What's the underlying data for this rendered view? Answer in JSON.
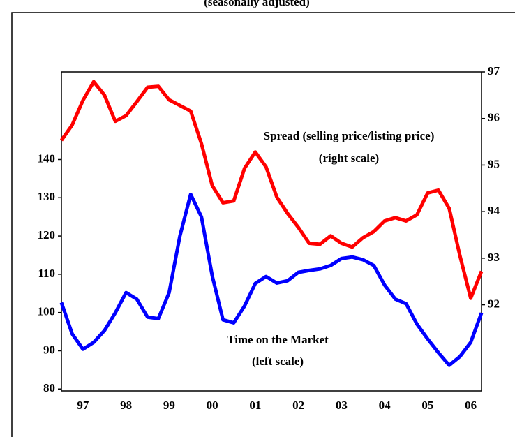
{
  "chart_data": {
    "type": "line",
    "subtitle": "(seasonally adjusted)",
    "annotations": [
      "Spread (selling price/listing price)",
      "(right scale)",
      "Time on the Market",
      "(left scale)"
    ],
    "x": [
      1997,
      1997.25,
      1997.5,
      1997.75,
      1998,
      1998.25,
      1998.5,
      1998.75,
      1999,
      1999.25,
      1999.5,
      1999.75,
      2000,
      2000.25,
      2000.5,
      2000.75,
      2001,
      2001.25,
      2001.5,
      2001.75,
      2002,
      2002.25,
      2002.5,
      2002.75,
      2003,
      2003.25,
      2003.5,
      2003.75,
      2004,
      2004.25,
      2004.5,
      2004.75,
      2005,
      2005.25,
      2005.5,
      2005.75,
      2006,
      2006.25,
      2006.5,
      2006.75
    ],
    "xlim": [
      1997,
      2006.75
    ],
    "xticks": [
      {
        "value": 1997.5,
        "label": "97"
      },
      {
        "value": 1998.5,
        "label": "98"
      },
      {
        "value": 1999.5,
        "label": "99"
      },
      {
        "value": 2000.5,
        "label": "00"
      },
      {
        "value": 2001.5,
        "label": "01"
      },
      {
        "value": 2002.5,
        "label": "02"
      },
      {
        "value": 2003.5,
        "label": "03"
      },
      {
        "value": 2004.5,
        "label": "04"
      },
      {
        "value": 2005.5,
        "label": "05"
      },
      {
        "value": 2006.5,
        "label": "06"
      }
    ],
    "ylim": [
      79.5,
      162.9
    ],
    "yticks": [
      80,
      90,
      100,
      110,
      120,
      130,
      140
    ],
    "y2lim": [
      90.15,
      97
    ],
    "y2ticks": [
      92,
      93,
      94,
      95,
      96,
      97
    ],
    "series": [
      {
        "name": "Time on the Market",
        "color": "#0000ff",
        "values": [
          102.6,
          94.4,
          90.4,
          92.2,
          95.3,
          99.9,
          105.2,
          103.5,
          98.8,
          98.4,
          105.2,
          120,
          130.9,
          125,
          109.6,
          98.1,
          97.3,
          101.7,
          107.6,
          109.4,
          107.7,
          108.3,
          110.5,
          111,
          111.4,
          112.3,
          114.1,
          114.5,
          113.8,
          112.3,
          107.2,
          103.5,
          102.3,
          97,
          93.1,
          89.5,
          86.2,
          88.5,
          92.2,
          99.9
        ]
      },
      {
        "name": "Spread",
        "color": "#ff0000",
        "axis": "y2",
        "values": [
          95.53,
          95.86,
          96.39,
          96.79,
          96.5,
          95.94,
          96.06,
          96.36,
          96.67,
          96.69,
          96.4,
          96.28,
          96.16,
          95.46,
          94.56,
          94.19,
          94.23,
          94.93,
          95.28,
          94.96,
          94.31,
          93.96,
          93.66,
          93.32,
          93.3,
          93.48,
          93.32,
          93.24,
          93.44,
          93.57,
          93.8,
          93.87,
          93.8,
          93.93,
          94.4,
          94.46,
          94.07,
          93.05,
          92.14,
          92.72
        ]
      }
    ]
  }
}
